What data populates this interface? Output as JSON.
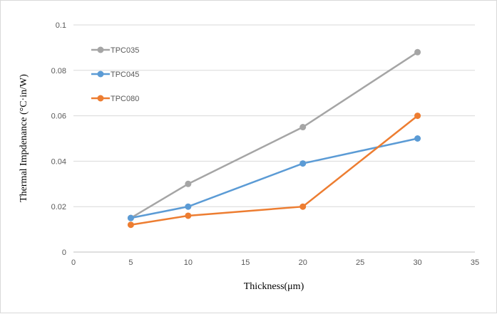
{
  "chart_data": {
    "type": "line",
    "xlabel": "Thickness(μm)",
    "ylabel": "Thermal Impdenance  (°C·in/W)",
    "xlim": [
      0,
      35
    ],
    "ylim": [
      0,
      0.1
    ],
    "xticks": [
      "0",
      "5",
      "10",
      "15",
      "20",
      "25",
      "30",
      "35"
    ],
    "yticks": [
      "0",
      "0.02",
      "0.04",
      "0.06",
      "0.08",
      "0.1"
    ],
    "grid": "horizontal",
    "legend": "top-left",
    "x": [
      5,
      10,
      20,
      30
    ],
    "series": [
      {
        "name": "TPC035",
        "color": "#a5a5a5",
        "values": [
          0.015,
          0.03,
          0.055,
          0.088
        ]
      },
      {
        "name": "TPC045",
        "color": "#5b9bd5",
        "values": [
          0.015,
          0.02,
          0.039,
          0.05
        ]
      },
      {
        "name": "TPC080",
        "color": "#ed7d31",
        "values": [
          0.012,
          0.016,
          0.02,
          0.06
        ]
      }
    ]
  }
}
